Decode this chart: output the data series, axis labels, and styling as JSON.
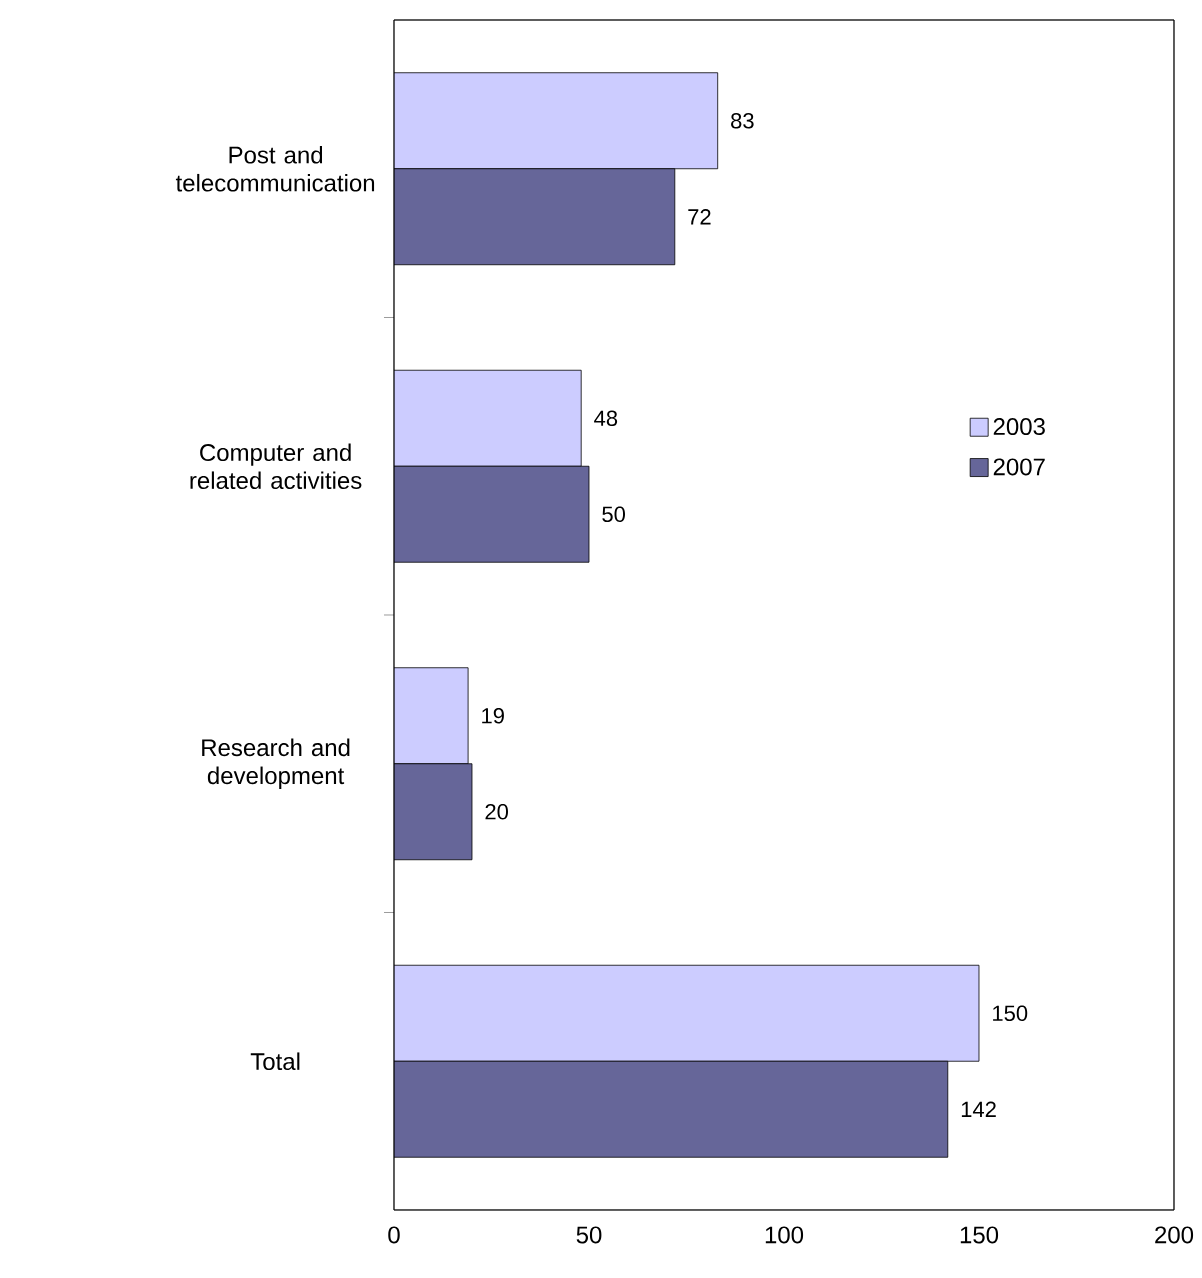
{
  "chart_data": {
    "type": "bar",
    "orientation": "horizontal",
    "categories": [
      "Post and telecommunication",
      "Computer and related activities",
      "Research and development",
      "Total"
    ],
    "series": [
      {
        "name": "2003",
        "color": "#ccccff",
        "values": [
          83,
          48,
          19,
          150
        ]
      },
      {
        "name": "2007",
        "color": "#666699",
        "values": [
          72,
          50,
          20,
          142
        ]
      }
    ],
    "xlim": [
      0,
      200
    ],
    "xticks": [
      0,
      50,
      100,
      150,
      200
    ],
    "data_labels": true,
    "legend": "right",
    "grid": false
  }
}
